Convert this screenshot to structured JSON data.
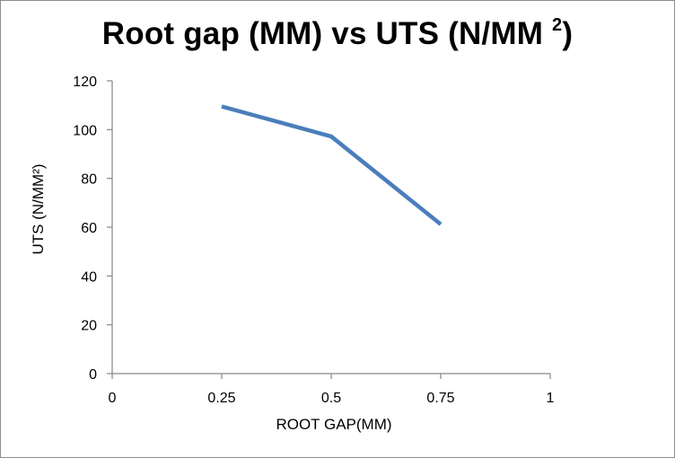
{
  "chart_data": {
    "type": "line",
    "title": "Root gap (MM) vs UTS (N/MM",
    "title_superscript": "2",
    "title_close": ")",
    "xlabel": "ROOT GAP(MM)",
    "ylabel": "UTS (N/MM²)",
    "xlim": [
      0,
      1
    ],
    "ylim": [
      0,
      120
    ],
    "xticks": [
      0,
      0.25,
      0.5,
      0.75,
      1
    ],
    "xtick_labels": [
      "0",
      "0.25",
      "0.5",
      "0.75",
      "1"
    ],
    "yticks": [
      0,
      20,
      40,
      60,
      80,
      100,
      120
    ],
    "ytick_labels": [
      "0",
      "20",
      "40",
      "60",
      "80",
      "100",
      "120"
    ],
    "grid": false,
    "legend": false,
    "series": [
      {
        "x": [
          0.25,
          0.5,
          0.75
        ],
        "values": [
          109.5,
          97.2,
          61.2
        ],
        "color": "#4A7EBB"
      }
    ]
  }
}
